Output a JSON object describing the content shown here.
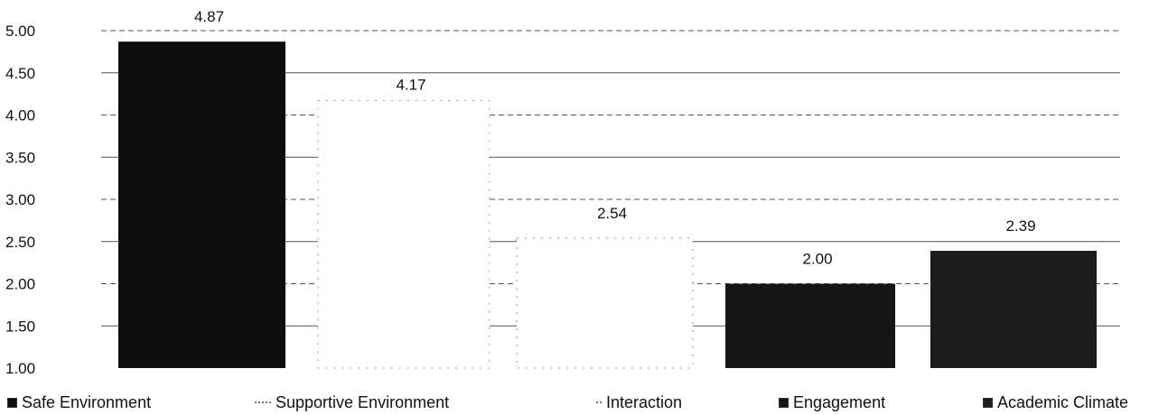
{
  "chart_data": {
    "type": "bar",
    "title": "",
    "xlabel": "",
    "ylabel": "",
    "ylim": [
      1.0,
      5.0
    ],
    "ytick_step": 0.5,
    "yticks": [
      "1.00",
      "1.50",
      "2.00",
      "2.50",
      "3.00",
      "3.50",
      "4.00",
      "4.50",
      "5.00"
    ],
    "grid": true,
    "legend_position": "bottom",
    "categories": [
      "Safe Environment",
      "Supportive Environment",
      "Interaction",
      "Engagement",
      "Academic Climate"
    ],
    "values": [
      4.87,
      4.17,
      2.54,
      2.0,
      2.39
    ],
    "data_labels": [
      "4.87",
      "4.17",
      "2.54",
      "2.00",
      "2.39"
    ],
    "colors": [
      "#0d0d0d",
      "#ffffff",
      "#ffffff",
      "#151515",
      "#1c1c1c"
    ],
    "legend": [
      {
        "label": "Safe Environment",
        "marker": "■"
      },
      {
        "label": "Supportive Environment",
        "marker": "··"
      },
      {
        "label": "Interaction",
        "marker": "'"
      },
      {
        "label": "Engagement",
        "marker": "■"
      },
      {
        "label": "Academic Climate",
        "marker": "■"
      }
    ]
  }
}
